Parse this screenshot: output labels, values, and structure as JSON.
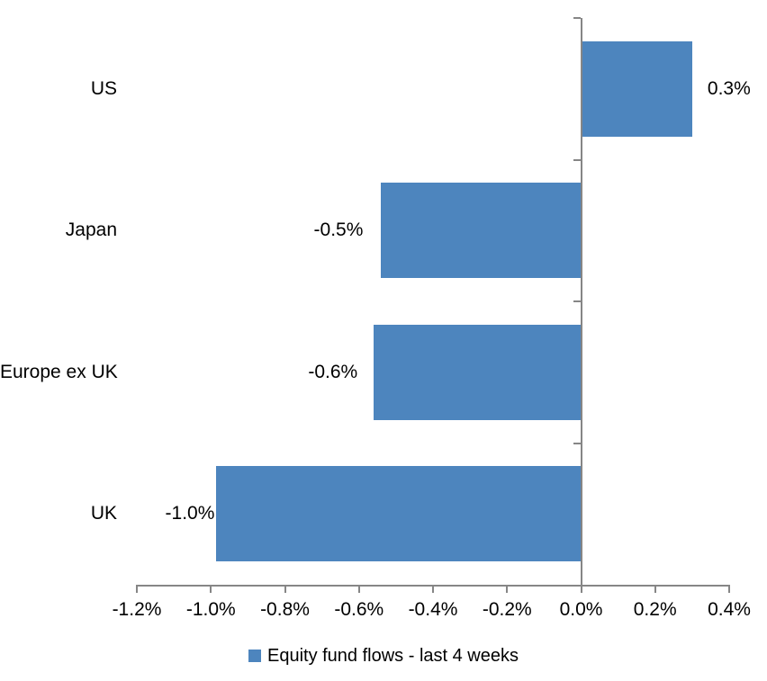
{
  "chart_data": {
    "type": "bar",
    "orientation": "horizontal",
    "title": "",
    "xlabel": "",
    "ylabel": "",
    "categories": [
      "US",
      "Japan",
      "Europe ex UK",
      "UK"
    ],
    "values": [
      0.3,
      -0.5,
      -0.6,
      -1.0
    ],
    "data_labels": [
      "0.3%",
      "-0.5%",
      "-0.6%",
      "-1.0%"
    ],
    "plot_values": [
      0.3,
      -0.54,
      -0.56,
      -0.985
    ],
    "series": [
      {
        "name": "Equity fund flows - last 4 weeks",
        "values": [
          0.3,
          -0.5,
          -0.6,
          -1.0
        ]
      }
    ],
    "xlim": [
      -1.2,
      0.4
    ],
    "x_ticks": [
      -1.2,
      -1.0,
      -0.8,
      -0.6,
      -0.4,
      -0.2,
      0.0,
      0.2,
      0.4
    ],
    "x_tick_labels": [
      "-1.2%",
      "-1.0%",
      "-0.8%",
      "-0.6%",
      "-0.4%",
      "-0.2%",
      "0.0%",
      "0.2%",
      "0.4%"
    ],
    "grid": false,
    "legend_position": "bottom",
    "bar_color": "#4D85BE",
    "axis_color": "#868686",
    "text_color": "#000000",
    "background": "#FFFFFF"
  },
  "legend": {
    "label": "Equity fund flows - last 4 weeks"
  }
}
